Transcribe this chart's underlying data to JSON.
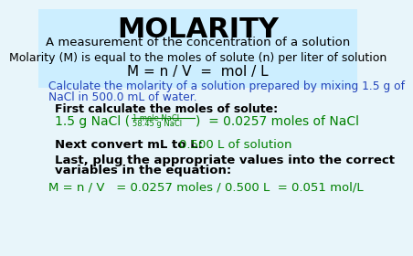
{
  "bg_color": "#e8f5fa",
  "header_bg": "#cceeff",
  "title": "MOLARITY",
  "subtitle": "A measurement of the concentration of a solution",
  "line3": "Molarity (M) is equal to the moles of solute (n) per liter of solution",
  "line4": "M = n / V  =  mol / L",
  "calc_line1": "Calculate the molarity of a solution prepared by mixing 1.5 g of",
  "calc_line2": "NaCl in 500.0 mL of water.",
  "first_calc": "First calculate the moles of solute:",
  "formula_left": "1.5 g NaCl (",
  "formula_super": "1 mole NaCl",
  "formula_sub": "58.45 g NaCl",
  "formula_right": ")  = 0.0257 moles of NaCl",
  "next_black": "Next convert mL to L:",
  "next_green": "0.500 L of solution",
  "last_line1": "Last, plug the appropriate values into the correct",
  "last_line2": "variables in the equation:",
  "final_eq": "M = n / V   = 0.0257 moles / 0.500 L  = 0.051 mol/L",
  "color_black": "#000000",
  "color_blue": "#2244bb",
  "color_green": "#008000"
}
